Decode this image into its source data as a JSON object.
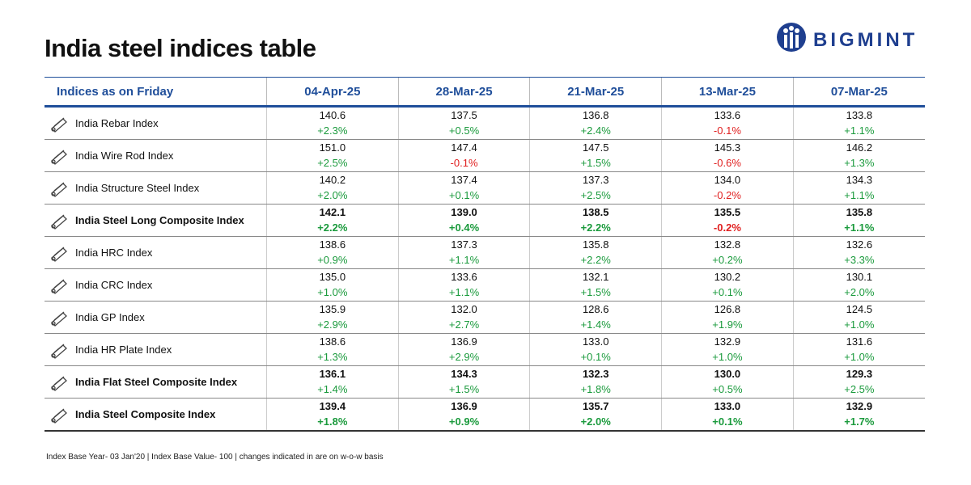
{
  "header": {
    "title": "India steel indices table",
    "logo": "BIGMINT"
  },
  "table": {
    "columns": [
      "Indices as on Friday",
      "04-Apr-25",
      "28-Mar-25",
      "21-Mar-25",
      "13-Mar-25",
      "07-Mar-25"
    ],
    "rows": [
      {
        "label": "India Rebar Index",
        "values": [
          "140.6",
          "137.5",
          "136.8",
          "133.6",
          "133.8"
        ],
        "changes": [
          "+2.3%",
          "+0.5%",
          "+2.4%",
          "-0.1%",
          "+1.1%"
        ]
      },
      {
        "label": "India Wire Rod Index",
        "values": [
          "151.0",
          "147.4",
          "147.5",
          "145.3",
          "146.2"
        ],
        "changes": [
          "+2.5%",
          "-0.1%",
          "+1.5%",
          "-0.6%",
          "+1.3%"
        ]
      },
      {
        "label": "India Structure Steel Index",
        "values": [
          "140.2",
          "137.4",
          "137.3",
          "134.0",
          "134.3"
        ],
        "changes": [
          "+2.0%",
          "+0.1%",
          "+2.5%",
          "-0.2%",
          "+1.1%"
        ]
      },
      {
        "label": "India Steel Long Composite Index",
        "bold": true,
        "bold_changes": true,
        "values": [
          "142.1",
          "139.0",
          "138.5",
          "135.5",
          "135.8"
        ],
        "changes": [
          "+2.2%",
          "+0.4%",
          "+2.2%",
          "-0.2%",
          "+1.1%"
        ]
      },
      {
        "label": "India HRC Index",
        "values": [
          "138.6",
          "137.3",
          "135.8",
          "132.8",
          "132.6"
        ],
        "changes": [
          "+0.9%",
          "+1.1%",
          "+2.2%",
          "+0.2%",
          "+3.3%"
        ]
      },
      {
        "label": "India CRC Index",
        "values": [
          "135.0",
          "133.6",
          "132.1",
          "130.2",
          "130.1"
        ],
        "changes": [
          "+1.0%",
          "+1.1%",
          "+1.5%",
          "+0.1%",
          "+2.0%"
        ]
      },
      {
        "label": "India GP Index",
        "values": [
          "135.9",
          "132.0",
          "128.6",
          "126.8",
          "124.5"
        ],
        "changes": [
          "+2.9%",
          "+2.7%",
          "+1.4%",
          "+1.9%",
          "+1.0%"
        ]
      },
      {
        "label": "India HR Plate Index",
        "values": [
          "138.6",
          "136.9",
          "133.0",
          "132.9",
          "131.6"
        ],
        "changes": [
          "+1.3%",
          "+2.9%",
          "+0.1%",
          "+1.0%",
          "+1.0%"
        ]
      },
      {
        "label": "India Flat Steel Composite Index",
        "bold": true,
        "values": [
          "136.1",
          "134.3",
          "132.3",
          "130.0",
          "129.3"
        ],
        "changes": [
          "+1.4%",
          "+1.5%",
          "+1.8%",
          "+0.5%",
          "+2.5%"
        ]
      },
      {
        "label": "India Steel Composite Index",
        "bold": true,
        "bold_changes": true,
        "values": [
          "139.4",
          "136.9",
          "135.7",
          "133.0",
          "132.9"
        ],
        "changes": [
          "+1.8%",
          "+0.9%",
          "+2.0%",
          "+0.1%",
          "+1.7%"
        ]
      }
    ]
  },
  "footer": {
    "note": "Index Base Year- 03 Jan'20 | Index Base Value- 100 | changes indicated in are on w-o-w basis"
  }
}
